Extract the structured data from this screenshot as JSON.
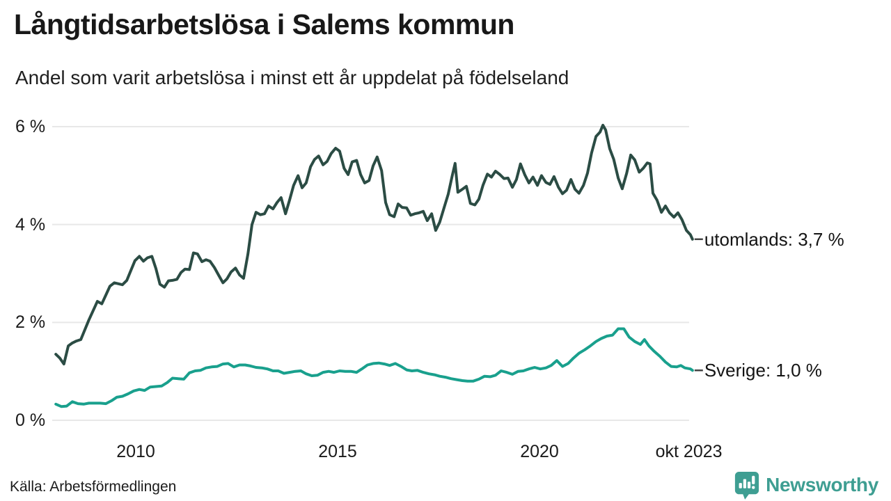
{
  "header": {
    "title": "Långtidsarbetslösa i Salems kommun",
    "subtitle": "Andel som varit arbetslösa i minst ett år uppdelat på födelseland"
  },
  "footer": {
    "source": "Källa: Arbetsförmedlingen",
    "brand": {
      "name": "Newsworthy"
    }
  },
  "colors": {
    "series_utomlands": "#2b4c44",
    "series_sverige": "#19a08d",
    "gridline": "#e8e8e8",
    "label_dash": "#444444",
    "brand_teal": "#3e9e92",
    "text": "#1a1a1a"
  },
  "chart_data": {
    "type": "line",
    "title": "Långtidsarbetslösa i Salems kommun",
    "subtitle": "Andel som varit arbetslösa i minst ett år uppdelat på födelseland",
    "unit": "%",
    "grid": "horizontal",
    "legend_position": "right-end-labels",
    "xlim_years": [
      2008.0,
      2023.83
    ],
    "ylim": [
      0,
      6.2
    ],
    "x_ticks": [
      {
        "year": 2010,
        "label": "2010"
      },
      {
        "year": 2015,
        "label": "2015"
      },
      {
        "year": 2020,
        "label": "2020"
      },
      {
        "year": 2023.7,
        "label": "okt 2023"
      }
    ],
    "y_ticks": [
      {
        "value": 0,
        "label": "0 %"
      },
      {
        "value": 2,
        "label": "2 %"
      },
      {
        "value": 4,
        "label": "4 %"
      },
      {
        "value": 6,
        "label": "6 %"
      }
    ],
    "series": [
      {
        "name": "utomlands",
        "end_label": "utomlands: 3,7 %",
        "last_value": 3.7,
        "color": "#2b4c44",
        "points": [
          [
            2008.02,
            1.35
          ],
          [
            2008.12,
            1.27
          ],
          [
            2008.22,
            1.15
          ],
          [
            2008.33,
            1.52
          ],
          [
            2008.43,
            1.58
          ],
          [
            2008.53,
            1.62
          ],
          [
            2008.64,
            1.65
          ],
          [
            2008.74,
            1.85
          ],
          [
            2008.84,
            2.05
          ],
          [
            2008.95,
            2.25
          ],
          [
            2009.05,
            2.43
          ],
          [
            2009.16,
            2.38
          ],
          [
            2009.26,
            2.56
          ],
          [
            2009.36,
            2.74
          ],
          [
            2009.47,
            2.81
          ],
          [
            2009.57,
            2.79
          ],
          [
            2009.67,
            2.77
          ],
          [
            2009.78,
            2.86
          ],
          [
            2009.88,
            3.06
          ],
          [
            2009.98,
            3.26
          ],
          [
            2010.09,
            3.35
          ],
          [
            2010.19,
            3.25
          ],
          [
            2010.29,
            3.32
          ],
          [
            2010.4,
            3.35
          ],
          [
            2010.5,
            3.1
          ],
          [
            2010.6,
            2.78
          ],
          [
            2010.71,
            2.72
          ],
          [
            2010.81,
            2.85
          ],
          [
            2010.91,
            2.86
          ],
          [
            2011.02,
            2.88
          ],
          [
            2011.12,
            3.02
          ],
          [
            2011.22,
            3.09
          ],
          [
            2011.33,
            3.08
          ],
          [
            2011.43,
            3.42
          ],
          [
            2011.53,
            3.4
          ],
          [
            2011.64,
            3.24
          ],
          [
            2011.74,
            3.28
          ],
          [
            2011.84,
            3.25
          ],
          [
            2011.95,
            3.12
          ],
          [
            2012.05,
            2.97
          ],
          [
            2012.16,
            2.81
          ],
          [
            2012.26,
            2.89
          ],
          [
            2012.36,
            3.03
          ],
          [
            2012.47,
            3.11
          ],
          [
            2012.57,
            2.97
          ],
          [
            2012.67,
            2.9
          ],
          [
            2012.78,
            3.4
          ],
          [
            2012.88,
            4.0
          ],
          [
            2012.98,
            4.25
          ],
          [
            2013.09,
            4.2
          ],
          [
            2013.19,
            4.22
          ],
          [
            2013.29,
            4.38
          ],
          [
            2013.4,
            4.32
          ],
          [
            2013.5,
            4.45
          ],
          [
            2013.6,
            4.55
          ],
          [
            2013.71,
            4.22
          ],
          [
            2013.81,
            4.5
          ],
          [
            2013.91,
            4.8
          ],
          [
            2014.02,
            5.0
          ],
          [
            2014.12,
            4.75
          ],
          [
            2014.22,
            4.85
          ],
          [
            2014.33,
            5.18
          ],
          [
            2014.43,
            5.33
          ],
          [
            2014.53,
            5.4
          ],
          [
            2014.64,
            5.22
          ],
          [
            2014.74,
            5.29
          ],
          [
            2014.84,
            5.45
          ],
          [
            2014.95,
            5.56
          ],
          [
            2015.05,
            5.5
          ],
          [
            2015.16,
            5.15
          ],
          [
            2015.26,
            5.02
          ],
          [
            2015.36,
            5.28
          ],
          [
            2015.47,
            5.31
          ],
          [
            2015.57,
            5.02
          ],
          [
            2015.67,
            4.85
          ],
          [
            2015.78,
            4.9
          ],
          [
            2015.88,
            5.2
          ],
          [
            2015.98,
            5.38
          ],
          [
            2016.09,
            5.1
          ],
          [
            2016.19,
            4.45
          ],
          [
            2016.29,
            4.2
          ],
          [
            2016.4,
            4.16
          ],
          [
            2016.5,
            4.42
          ],
          [
            2016.6,
            4.35
          ],
          [
            2016.71,
            4.34
          ],
          [
            2016.81,
            4.19
          ],
          [
            2016.91,
            4.22
          ],
          [
            2017.02,
            4.24
          ],
          [
            2017.12,
            4.27
          ],
          [
            2017.22,
            4.08
          ],
          [
            2017.33,
            4.22
          ],
          [
            2017.43,
            3.88
          ],
          [
            2017.53,
            4.05
          ],
          [
            2017.64,
            4.35
          ],
          [
            2017.74,
            4.62
          ],
          [
            2017.84,
            5.0
          ],
          [
            2017.91,
            5.25
          ],
          [
            2017.98,
            4.66
          ],
          [
            2018.09,
            4.72
          ],
          [
            2018.19,
            4.78
          ],
          [
            2018.29,
            4.43
          ],
          [
            2018.4,
            4.4
          ],
          [
            2018.5,
            4.52
          ],
          [
            2018.6,
            4.8
          ],
          [
            2018.71,
            5.03
          ],
          [
            2018.81,
            4.97
          ],
          [
            2018.91,
            5.09
          ],
          [
            2019.02,
            5.02
          ],
          [
            2019.12,
            4.94
          ],
          [
            2019.22,
            4.95
          ],
          [
            2019.33,
            4.76
          ],
          [
            2019.43,
            4.92
          ],
          [
            2019.53,
            5.24
          ],
          [
            2019.64,
            5.01
          ],
          [
            2019.74,
            4.85
          ],
          [
            2019.84,
            4.97
          ],
          [
            2019.95,
            4.8
          ],
          [
            2020.05,
            5.0
          ],
          [
            2020.16,
            4.86
          ],
          [
            2020.26,
            4.82
          ],
          [
            2020.36,
            4.98
          ],
          [
            2020.47,
            4.76
          ],
          [
            2020.57,
            4.63
          ],
          [
            2020.67,
            4.7
          ],
          [
            2020.78,
            4.92
          ],
          [
            2020.88,
            4.72
          ],
          [
            2020.98,
            4.64
          ],
          [
            2021.09,
            4.8
          ],
          [
            2021.19,
            5.05
          ],
          [
            2021.29,
            5.46
          ],
          [
            2021.4,
            5.8
          ],
          [
            2021.5,
            5.89
          ],
          [
            2021.57,
            6.03
          ],
          [
            2021.64,
            5.93
          ],
          [
            2021.74,
            5.55
          ],
          [
            2021.84,
            5.33
          ],
          [
            2021.95,
            4.95
          ],
          [
            2022.05,
            4.73
          ],
          [
            2022.16,
            5.05
          ],
          [
            2022.26,
            5.42
          ],
          [
            2022.36,
            5.32
          ],
          [
            2022.47,
            5.07
          ],
          [
            2022.57,
            5.15
          ],
          [
            2022.67,
            5.26
          ],
          [
            2022.74,
            5.24
          ],
          [
            2022.81,
            4.64
          ],
          [
            2022.91,
            4.5
          ],
          [
            2023.02,
            4.25
          ],
          [
            2023.12,
            4.38
          ],
          [
            2023.22,
            4.24
          ],
          [
            2023.33,
            4.15
          ],
          [
            2023.43,
            4.24
          ],
          [
            2023.53,
            4.1
          ],
          [
            2023.64,
            3.88
          ],
          [
            2023.74,
            3.79
          ],
          [
            2023.79,
            3.7
          ]
        ]
      },
      {
        "name": "Sverige",
        "end_label": "Sverige: 1,0 %",
        "last_value": 1.0,
        "color": "#19a08d",
        "points": [
          [
            2008.02,
            0.33
          ],
          [
            2008.16,
            0.28
          ],
          [
            2008.29,
            0.29
          ],
          [
            2008.43,
            0.38
          ],
          [
            2008.57,
            0.34
          ],
          [
            2008.71,
            0.33
          ],
          [
            2008.84,
            0.35
          ],
          [
            2008.98,
            0.35
          ],
          [
            2009.12,
            0.35
          ],
          [
            2009.26,
            0.34
          ],
          [
            2009.4,
            0.4
          ],
          [
            2009.53,
            0.47
          ],
          [
            2009.67,
            0.49
          ],
          [
            2009.81,
            0.54
          ],
          [
            2009.95,
            0.6
          ],
          [
            2010.09,
            0.63
          ],
          [
            2010.22,
            0.61
          ],
          [
            2010.36,
            0.68
          ],
          [
            2010.5,
            0.69
          ],
          [
            2010.64,
            0.7
          ],
          [
            2010.78,
            0.77
          ],
          [
            2010.91,
            0.86
          ],
          [
            2011.05,
            0.85
          ],
          [
            2011.19,
            0.84
          ],
          [
            2011.33,
            0.97
          ],
          [
            2011.47,
            1.01
          ],
          [
            2011.6,
            1.02
          ],
          [
            2011.74,
            1.07
          ],
          [
            2011.88,
            1.09
          ],
          [
            2012.02,
            1.1
          ],
          [
            2012.16,
            1.15
          ],
          [
            2012.29,
            1.16
          ],
          [
            2012.43,
            1.09
          ],
          [
            2012.57,
            1.13
          ],
          [
            2012.71,
            1.13
          ],
          [
            2012.84,
            1.11
          ],
          [
            2012.98,
            1.08
          ],
          [
            2013.12,
            1.07
          ],
          [
            2013.26,
            1.05
          ],
          [
            2013.4,
            1.01
          ],
          [
            2013.53,
            1.01
          ],
          [
            2013.67,
            0.96
          ],
          [
            2013.81,
            0.98
          ],
          [
            2013.95,
            1.0
          ],
          [
            2014.09,
            1.01
          ],
          [
            2014.22,
            0.95
          ],
          [
            2014.36,
            0.91
          ],
          [
            2014.5,
            0.92
          ],
          [
            2014.64,
            0.98
          ],
          [
            2014.78,
            1.0
          ],
          [
            2014.91,
            0.98
          ],
          [
            2015.05,
            1.01
          ],
          [
            2015.19,
            1.0
          ],
          [
            2015.33,
            1.0
          ],
          [
            2015.47,
            0.98
          ],
          [
            2015.6,
            1.05
          ],
          [
            2015.74,
            1.13
          ],
          [
            2015.88,
            1.16
          ],
          [
            2016.02,
            1.17
          ],
          [
            2016.16,
            1.15
          ],
          [
            2016.29,
            1.12
          ],
          [
            2016.43,
            1.16
          ],
          [
            2016.57,
            1.1
          ],
          [
            2016.71,
            1.03
          ],
          [
            2016.84,
            1.01
          ],
          [
            2016.98,
            1.02
          ],
          [
            2017.12,
            0.98
          ],
          [
            2017.26,
            0.95
          ],
          [
            2017.4,
            0.93
          ],
          [
            2017.53,
            0.9
          ],
          [
            2017.67,
            0.88
          ],
          [
            2017.81,
            0.85
          ],
          [
            2017.95,
            0.83
          ],
          [
            2018.09,
            0.81
          ],
          [
            2018.22,
            0.8
          ],
          [
            2018.36,
            0.8
          ],
          [
            2018.5,
            0.84
          ],
          [
            2018.64,
            0.9
          ],
          [
            2018.78,
            0.89
          ],
          [
            2018.91,
            0.92
          ],
          [
            2019.05,
            1.01
          ],
          [
            2019.19,
            0.98
          ],
          [
            2019.33,
            0.94
          ],
          [
            2019.47,
            1.0
          ],
          [
            2019.6,
            1.01
          ],
          [
            2019.74,
            1.05
          ],
          [
            2019.88,
            1.08
          ],
          [
            2020.02,
            1.05
          ],
          [
            2020.16,
            1.07
          ],
          [
            2020.29,
            1.12
          ],
          [
            2020.43,
            1.22
          ],
          [
            2020.57,
            1.1
          ],
          [
            2020.71,
            1.16
          ],
          [
            2020.84,
            1.27
          ],
          [
            2020.98,
            1.37
          ],
          [
            2021.12,
            1.44
          ],
          [
            2021.26,
            1.52
          ],
          [
            2021.4,
            1.61
          ],
          [
            2021.53,
            1.67
          ],
          [
            2021.67,
            1.72
          ],
          [
            2021.81,
            1.74
          ],
          [
            2021.95,
            1.87
          ],
          [
            2022.09,
            1.87
          ],
          [
            2022.22,
            1.7
          ],
          [
            2022.36,
            1.61
          ],
          [
            2022.5,
            1.55
          ],
          [
            2022.6,
            1.65
          ],
          [
            2022.71,
            1.52
          ],
          [
            2022.84,
            1.41
          ],
          [
            2022.98,
            1.31
          ],
          [
            2023.12,
            1.19
          ],
          [
            2023.26,
            1.1
          ],
          [
            2023.4,
            1.09
          ],
          [
            2023.5,
            1.12
          ],
          [
            2023.6,
            1.07
          ],
          [
            2023.74,
            1.05
          ],
          [
            2023.79,
            1.02
          ]
        ]
      }
    ]
  }
}
